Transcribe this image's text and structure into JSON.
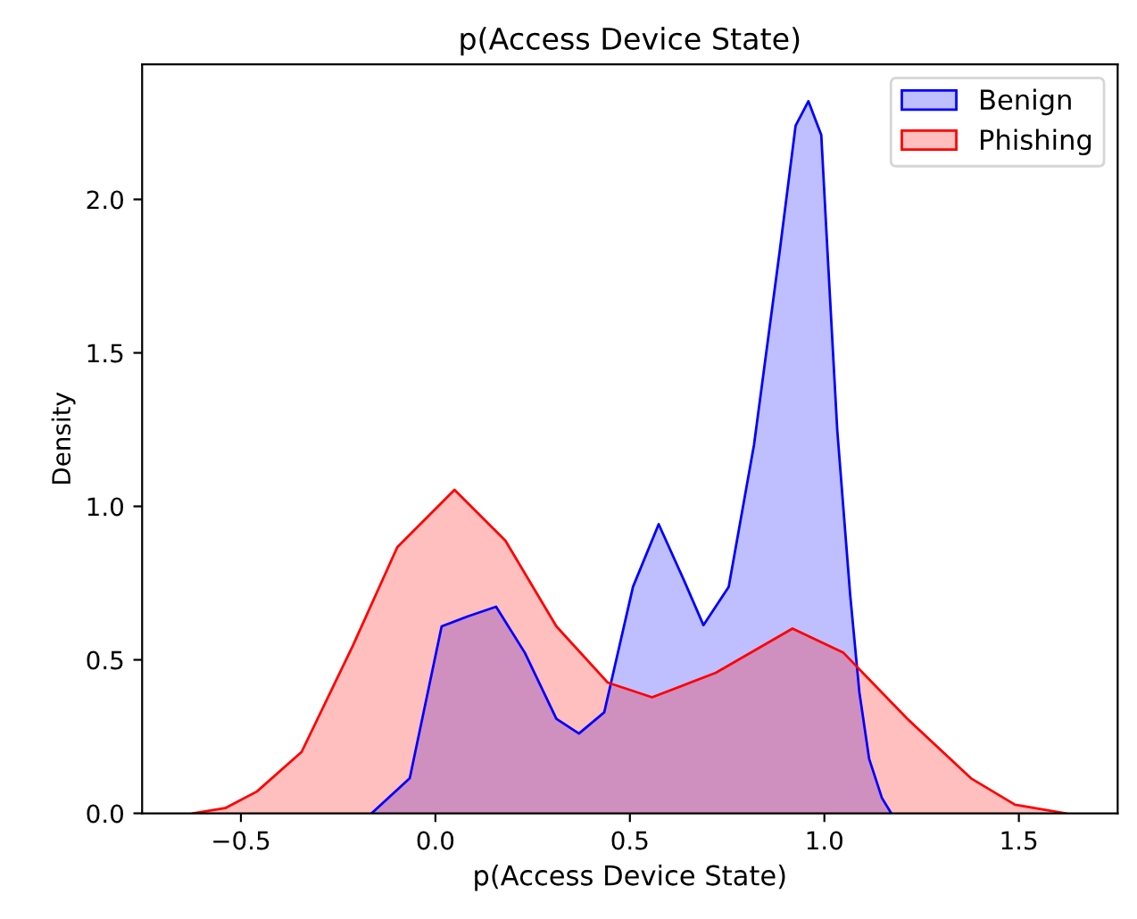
{
  "chart_data": {
    "type": "area",
    "title": "p(Access Device State)",
    "xlabel": "p(Access Device State)",
    "ylabel": "Density",
    "xlim": [
      -0.754,
      1.754
    ],
    "xticks": [
      {
        "value": -0.5,
        "label": "−0.5"
      },
      {
        "value": 0.0,
        "label": "0.0"
      },
      {
        "value": 0.5,
        "label": "0.5"
      },
      {
        "value": 1.0,
        "label": "1.0"
      },
      {
        "value": 1.5,
        "label": "1.5"
      }
    ],
    "ylim": [
      0,
      2.44
    ],
    "yticks": [
      {
        "value": 0.0,
        "label": "0.0"
      },
      {
        "value": 0.5,
        "label": "0.5"
      },
      {
        "value": 1.0,
        "label": "1.0"
      },
      {
        "value": 1.5,
        "label": "1.5"
      },
      {
        "value": 2.0,
        "label": "2.0"
      }
    ],
    "legend": "top right",
    "grid": false,
    "series": [
      {
        "name": "Benign",
        "color": "#0000ff",
        "x": [
          -0.164,
          -0.066,
          0.016,
          0.082,
          0.156,
          0.23,
          0.311,
          0.369,
          0.434,
          0.508,
          0.574,
          0.639,
          0.689,
          0.754,
          0.819,
          0.885,
          0.926,
          0.959,
          0.992,
          1.008,
          1.033,
          1.066,
          1.09,
          1.115,
          1.148,
          1.172
        ],
        "values": [
          0,
          0.114,
          0.609,
          0.641,
          0.673,
          0.523,
          0.308,
          0.26,
          0.329,
          0.738,
          0.942,
          0.759,
          0.613,
          0.738,
          1.2,
          1.83,
          2.24,
          2.32,
          2.21,
          1.83,
          1.25,
          0.716,
          0.394,
          0.178,
          0.05,
          0
        ]
      },
      {
        "name": "Phishing",
        "color": "#ff0000",
        "x": [
          -0.623,
          -0.54,
          -0.459,
          -0.344,
          -0.213,
          -0.098,
          0.049,
          0.18,
          0.311,
          0.443,
          0.557,
          0.721,
          0.918,
          1.049,
          1.213,
          1.377,
          1.49,
          1.62
        ],
        "values": [
          0,
          0.017,
          0.071,
          0.2,
          0.544,
          0.867,
          1.054,
          0.888,
          0.609,
          0.426,
          0.378,
          0.458,
          0.602,
          0.523,
          0.308,
          0.114,
          0.028,
          0
        ]
      }
    ]
  }
}
